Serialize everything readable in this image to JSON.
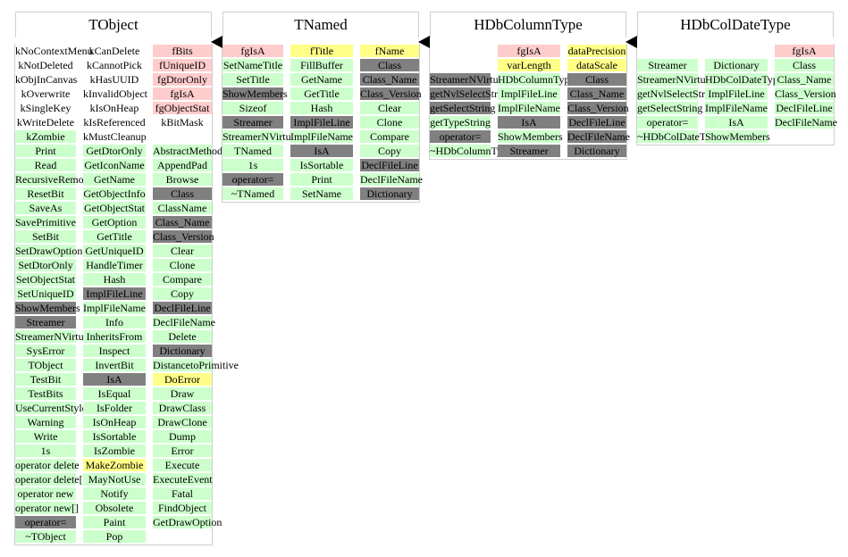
{
  "legend_classes": {
    "member": "#ccffcc",
    "data": "#ffcccc",
    "virtual": "#808080",
    "special": "#ffff88"
  },
  "classes": [
    {
      "name": "TObject",
      "columns": [
        {
          "items": [
            {
              "t": "kNoContextMenu",
              "k": "plain"
            },
            {
              "t": "kNotDeleted",
              "k": "plain"
            },
            {
              "t": "kObjInCanvas",
              "k": "plain"
            },
            {
              "t": "kOverwrite",
              "k": "plain"
            },
            {
              "t": "kSingleKey",
              "k": "plain"
            },
            {
              "t": "kWriteDelete",
              "k": "plain"
            },
            {
              "t": "kZombie",
              "k": "member"
            },
            {
              "t": "Print",
              "k": "member"
            },
            {
              "t": "Read",
              "k": "member"
            },
            {
              "t": "RecursiveRemove",
              "k": "member"
            },
            {
              "t": "ResetBit",
              "k": "member"
            },
            {
              "t": "SaveAs",
              "k": "member"
            },
            {
              "t": "SavePrimitive",
              "k": "member"
            },
            {
              "t": "SetBit",
              "k": "member"
            },
            {
              "t": "SetDrawOption",
              "k": "member"
            },
            {
              "t": "SetDtorOnly",
              "k": "member"
            },
            {
              "t": "SetObjectStat",
              "k": "member"
            },
            {
              "t": "SetUniqueID",
              "k": "member"
            },
            {
              "t": "ShowMembers",
              "k": "virtual"
            },
            {
              "t": "Streamer",
              "k": "virtual"
            },
            {
              "t": "StreamerNVirtual",
              "k": "member"
            },
            {
              "t": "SysError",
              "k": "member"
            },
            {
              "t": "TObject",
              "k": "member"
            },
            {
              "t": "TestBit",
              "k": "member"
            },
            {
              "t": "TestBits",
              "k": "member"
            },
            {
              "t": "UseCurrentStyle",
              "k": "member"
            },
            {
              "t": "Warning",
              "k": "member"
            },
            {
              "t": "Write",
              "k": "member"
            },
            {
              "t": "1s",
              "k": "member"
            },
            {
              "t": "operator delete",
              "k": "member"
            },
            {
              "t": "operator delete[]",
              "k": "member"
            },
            {
              "t": "operator new",
              "k": "member"
            },
            {
              "t": "operator new[]",
              "k": "member"
            },
            {
              "t": "operator=",
              "k": "virtual"
            },
            {
              "t": "~TObject",
              "k": "member"
            }
          ]
        },
        {
          "items": [
            {
              "t": "kCanDelete",
              "k": "plain"
            },
            {
              "t": "kCannotPick",
              "k": "plain"
            },
            {
              "t": "kHasUUID",
              "k": "plain"
            },
            {
              "t": "kInvalidObject",
              "k": "plain"
            },
            {
              "t": "kIsOnHeap",
              "k": "plain"
            },
            {
              "t": "kIsReferenced",
              "k": "plain"
            },
            {
              "t": "kMustCleanup",
              "k": "plain"
            },
            {
              "t": "GetDtorOnly",
              "k": "member"
            },
            {
              "t": "GetIconName",
              "k": "member"
            },
            {
              "t": "GetName",
              "k": "member"
            },
            {
              "t": "GetObjectInfo",
              "k": "member"
            },
            {
              "t": "GetObjectStat",
              "k": "member"
            },
            {
              "t": "GetOption",
              "k": "member"
            },
            {
              "t": "GetTitle",
              "k": "member"
            },
            {
              "t": "GetUniqueID",
              "k": "member"
            },
            {
              "t": "HandleTimer",
              "k": "member"
            },
            {
              "t": "Hash",
              "k": "member"
            },
            {
              "t": "ImplFileLine",
              "k": "virtual"
            },
            {
              "t": "ImplFileName",
              "k": "member"
            },
            {
              "t": "Info",
              "k": "member"
            },
            {
              "t": "InheritsFrom",
              "k": "member"
            },
            {
              "t": "Inspect",
              "k": "member"
            },
            {
              "t": "InvertBit",
              "k": "member"
            },
            {
              "t": "IsA",
              "k": "virtual"
            },
            {
              "t": "IsEqual",
              "k": "member"
            },
            {
              "t": "IsFolder",
              "k": "member"
            },
            {
              "t": "IsOnHeap",
              "k": "member"
            },
            {
              "t": "IsSortable",
              "k": "member"
            },
            {
              "t": "IsZombie",
              "k": "member"
            },
            {
              "t": "MakeZombie",
              "k": "special"
            },
            {
              "t": "MayNotUse",
              "k": "member"
            },
            {
              "t": "Notify",
              "k": "member"
            },
            {
              "t": "Obsolete",
              "k": "member"
            },
            {
              "t": "Paint",
              "k": "member"
            },
            {
              "t": "Pop",
              "k": "member"
            }
          ]
        },
        {
          "items": [
            {
              "t": "fBits",
              "k": "data"
            },
            {
              "t": "fUniqueID",
              "k": "data"
            },
            {
              "t": "fgDtorOnly",
              "k": "data"
            },
            {
              "t": "fgIsA",
              "k": "data"
            },
            {
              "t": "fgObjectStat",
              "k": "data"
            },
            {
              "t": "kBitMask",
              "k": "plain"
            },
            {
              "t": "",
              "k": "plain"
            },
            {
              "t": "AbstractMethod",
              "k": "member"
            },
            {
              "t": "AppendPad",
              "k": "member"
            },
            {
              "t": "Browse",
              "k": "member"
            },
            {
              "t": "Class",
              "k": "virtual"
            },
            {
              "t": "ClassName",
              "k": "member"
            },
            {
              "t": "Class_Name",
              "k": "virtual"
            },
            {
              "t": "Class_Version",
              "k": "virtual"
            },
            {
              "t": "Clear",
              "k": "member"
            },
            {
              "t": "Clone",
              "k": "member"
            },
            {
              "t": "Compare",
              "k": "member"
            },
            {
              "t": "Copy",
              "k": "member"
            },
            {
              "t": "DeclFileLine",
              "k": "virtual"
            },
            {
              "t": "DeclFileName",
              "k": "member"
            },
            {
              "t": "Delete",
              "k": "member"
            },
            {
              "t": "Dictionary",
              "k": "virtual"
            },
            {
              "t": "DistancetoPrimitive",
              "k": "member"
            },
            {
              "t": "DoError",
              "k": "special"
            },
            {
              "t": "Draw",
              "k": "member"
            },
            {
              "t": "DrawClass",
              "k": "member"
            },
            {
              "t": "DrawClone",
              "k": "member"
            },
            {
              "t": "Dump",
              "k": "member"
            },
            {
              "t": "Error",
              "k": "member"
            },
            {
              "t": "Execute",
              "k": "member"
            },
            {
              "t": "ExecuteEvent",
              "k": "member"
            },
            {
              "t": "Fatal",
              "k": "member"
            },
            {
              "t": "FindObject",
              "k": "member"
            },
            {
              "t": "GetDrawOption",
              "k": "member"
            }
          ]
        }
      ]
    },
    {
      "name": "TNamed",
      "columns": [
        {
          "items": [
            {
              "t": "fgIsA",
              "k": "data"
            },
            {
              "t": "SetNameTitle",
              "k": "member"
            },
            {
              "t": "SetTitle",
              "k": "member"
            },
            {
              "t": "ShowMembers",
              "k": "virtual"
            },
            {
              "t": "Sizeof",
              "k": "member"
            },
            {
              "t": "Streamer",
              "k": "virtual"
            },
            {
              "t": "StreamerNVirtual",
              "k": "member"
            },
            {
              "t": "TNamed",
              "k": "member"
            },
            {
              "t": "1s",
              "k": "member"
            },
            {
              "t": "operator=",
              "k": "virtual"
            },
            {
              "t": "~TNamed",
              "k": "member"
            }
          ]
        },
        {
          "items": [
            {
              "t": "fTitle",
              "k": "special"
            },
            {
              "t": "FillBuffer",
              "k": "member"
            },
            {
              "t": "GetName",
              "k": "member"
            },
            {
              "t": "GetTitle",
              "k": "member"
            },
            {
              "t": "Hash",
              "k": "member"
            },
            {
              "t": "ImplFileLine",
              "k": "virtual"
            },
            {
              "t": "ImplFileName",
              "k": "member"
            },
            {
              "t": "IsA",
              "k": "virtual"
            },
            {
              "t": "IsSortable",
              "k": "member"
            },
            {
              "t": "Print",
              "k": "member"
            },
            {
              "t": "SetName",
              "k": "member"
            }
          ]
        },
        {
          "items": [
            {
              "t": "fName",
              "k": "special"
            },
            {
              "t": "Class",
              "k": "virtual"
            },
            {
              "t": "Class_Name",
              "k": "virtual"
            },
            {
              "t": "Class_Version",
              "k": "virtual"
            },
            {
              "t": "Clear",
              "k": "member"
            },
            {
              "t": "Clone",
              "k": "member"
            },
            {
              "t": "Compare",
              "k": "member"
            },
            {
              "t": "Copy",
              "k": "member"
            },
            {
              "t": "DeclFileLine",
              "k": "virtual"
            },
            {
              "t": "DeclFileName",
              "k": "member"
            },
            {
              "t": "Dictionary",
              "k": "virtual"
            }
          ]
        }
      ]
    },
    {
      "name": "HDbColumnType",
      "columns": [
        {
          "items": [
            {
              "t": "",
              "k": "plain"
            },
            {
              "t": "",
              "k": "plain"
            },
            {
              "t": "StreamerNVirtual",
              "k": "virtual"
            },
            {
              "t": "getNvlSelectString",
              "k": "virtual"
            },
            {
              "t": "getSelectString",
              "k": "virtual"
            },
            {
              "t": "getTypeString",
              "k": "member"
            },
            {
              "t": "operator=",
              "k": "virtual"
            },
            {
              "t": "~HDbColumnType",
              "k": "member"
            }
          ]
        },
        {
          "items": [
            {
              "t": "fgIsA",
              "k": "data"
            },
            {
              "t": "varLength",
              "k": "special"
            },
            {
              "t": "HDbColumnType",
              "k": "member"
            },
            {
              "t": "ImplFileLine",
              "k": "member"
            },
            {
              "t": "ImplFileName",
              "k": "member"
            },
            {
              "t": "IsA",
              "k": "virtual"
            },
            {
              "t": "ShowMembers",
              "k": "member"
            },
            {
              "t": "Streamer",
              "k": "virtual"
            }
          ]
        },
        {
          "items": [
            {
              "t": "dataPrecision",
              "k": "special"
            },
            {
              "t": "dataScale",
              "k": "special"
            },
            {
              "t": "Class",
              "k": "virtual"
            },
            {
              "t": "Class_Name",
              "k": "virtual"
            },
            {
              "t": "Class_Version",
              "k": "virtual"
            },
            {
              "t": "DeclFileLine",
              "k": "virtual"
            },
            {
              "t": "DeclFileName",
              "k": "virtual"
            },
            {
              "t": "Dictionary",
              "k": "virtual"
            }
          ]
        }
      ]
    },
    {
      "name": "HDbColDateType",
      "columns": [
        {
          "items": [
            {
              "t": "",
              "k": "plain"
            },
            {
              "t": "Streamer",
              "k": "member"
            },
            {
              "t": "StreamerNVirtual",
              "k": "member"
            },
            {
              "t": "getNvlSelectString",
              "k": "member"
            },
            {
              "t": "getSelectString",
              "k": "member"
            },
            {
              "t": "operator=",
              "k": "member"
            },
            {
              "t": "~HDbColDateType",
              "k": "member"
            }
          ]
        },
        {
          "items": [
            {
              "t": "",
              "k": "plain"
            },
            {
              "t": "Dictionary",
              "k": "member"
            },
            {
              "t": "HDbColDateType",
              "k": "member"
            },
            {
              "t": "ImplFileLine",
              "k": "member"
            },
            {
              "t": "ImplFileName",
              "k": "member"
            },
            {
              "t": "IsA",
              "k": "member"
            },
            {
              "t": "ShowMembers",
              "k": "member"
            }
          ]
        },
        {
          "items": [
            {
              "t": "fgIsA",
              "k": "data"
            },
            {
              "t": "Class",
              "k": "member"
            },
            {
              "t": "Class_Name",
              "k": "member"
            },
            {
              "t": "Class_Version",
              "k": "member"
            },
            {
              "t": "DeclFileLine",
              "k": "member"
            },
            {
              "t": "DeclFileName",
              "k": "member"
            }
          ]
        }
      ]
    }
  ]
}
